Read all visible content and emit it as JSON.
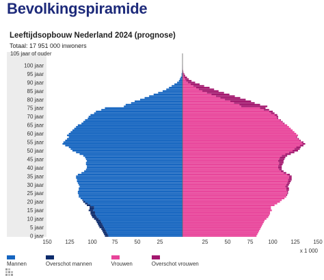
{
  "page": {
    "title": "Bevolkingspiramide"
  },
  "chart_data": {
    "type": "population_pyramid",
    "title": "Leeftijdsopbouw Nederland 2024 (prognose)",
    "subtitle": "Totaal: 17 951 000 inwoners",
    "unit_label": "x 1 000",
    "y_axis_top_label": "105 jaar of ouder",
    "y_tick_labels": [
      "0 jaar",
      "5 jaar",
      "10 jaar",
      "15 jaar",
      "20 jaar",
      "25 jaar",
      "30 jaar",
      "35 jaar",
      "40 jaar",
      "45 jaar",
      "50 jaar",
      "55 jaar",
      "60 jaar",
      "65 jaar",
      "70 jaar",
      "75 jaar",
      "80 jaar",
      "85 jaar",
      "90 jaar",
      "95 jaar",
      "100 jaar"
    ],
    "x_tick_labels_left": [
      "150",
      "125",
      "100",
      "75",
      "50",
      "25"
    ],
    "x_tick_labels_right": [
      "25",
      "50",
      "75",
      "100",
      "125",
      "150"
    ],
    "xlim": [
      -150,
      150
    ],
    "age_range": [
      0,
      105
    ],
    "legend": [
      "Mannen",
      "Overschot mannen",
      "Vrouwen",
      "Overschot vrouwen"
    ],
    "colors": {
      "mannen": "#1565c0",
      "overschot_mannen": "#0d2b6b",
      "vrouwen": "#e8449a",
      "overschot_vrouwen": "#a3176e",
      "age_band": "#ececec"
    },
    "series": [
      {
        "name": "Mannen",
        "values": [
          86,
          87,
          88,
          89,
          90,
          92,
          93,
          94,
          95,
          96,
          98,
          100,
          101,
          102,
          102,
          104,
          103,
          103,
          106,
          108,
          110,
          111,
          113,
          115,
          115,
          116,
          116,
          115,
          115,
          114,
          115,
          116,
          117,
          117,
          118,
          118,
          116,
          112,
          109,
          107,
          106,
          106,
          107,
          107,
          106,
          107,
          108,
          110,
          114,
          118,
          122,
          124,
          126,
          130,
          133,
          132,
          130,
          128,
          126,
          128,
          126,
          124,
          122,
          120,
          118,
          116,
          112,
          110,
          108,
          105,
          104,
          102,
          98,
          96,
          90,
          86,
          65,
          63,
          57,
          53,
          47,
          42,
          37,
          32,
          27,
          22,
          18,
          15,
          12,
          9,
          6,
          4,
          3,
          2,
          1,
          1,
          0.5,
          0.3,
          0.2,
          0.1,
          0.1,
          0,
          0,
          0,
          0,
          0
        ]
      },
      {
        "name": "Vrouwen",
        "values": [
          82,
          83,
          84,
          85,
          86,
          87,
          88,
          89,
          90,
          91,
          93,
          95,
          96,
          97,
          97,
          99,
          98,
          98,
          102,
          105,
          108,
          110,
          113,
          115,
          116,
          117,
          117,
          118,
          118,
          117,
          118,
          119,
          120,
          121,
          121,
          121,
          119,
          115,
          112,
          110,
          110,
          110,
          111,
          112,
          112,
          113,
          114,
          116,
          120,
          124,
          128,
          130,
          131,
          134,
          136,
          134,
          131,
          129,
          127,
          128,
          126,
          124,
          122,
          120,
          118,
          116,
          113,
          111,
          109,
          106,
          106,
          105,
          102,
          100,
          96,
          92,
          94,
          86,
          80,
          76,
          70,
          64,
          58,
          52,
          46,
          40,
          35,
          30,
          24,
          19,
          14,
          10,
          7,
          5,
          3,
          2,
          1,
          0.6,
          0.3,
          0.2,
          0.1,
          0,
          0,
          0,
          0,
          0
        ]
      }
    ]
  }
}
